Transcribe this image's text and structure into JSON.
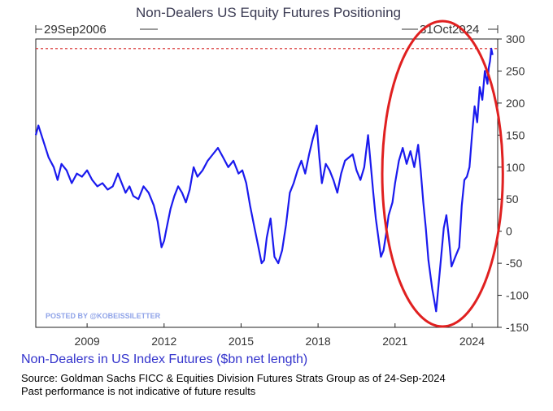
{
  "chart_data": {
    "type": "line",
    "title": "Non-Dealers US Equity Futures Positioning",
    "start_label": "29Sep2006",
    "end_label": "31Oct2024",
    "xlim": [
      2007.0,
      2025.0
    ],
    "ylim": [
      -150,
      300
    ],
    "x_ticks": [
      2009,
      2012,
      2015,
      2018,
      2021,
      2024
    ],
    "y_ticks": [
      -150,
      -100,
      -50,
      0,
      50,
      100,
      150,
      200,
      250,
      300
    ],
    "reference_line": {
      "value": 285,
      "style": "dashed",
      "color": "#d62020"
    },
    "highlight": {
      "shape": "ellipse",
      "color": "#e02020",
      "x_range": [
        2020.5,
        2025.2
      ]
    },
    "series": [
      {
        "color": "#1a1aee",
        "x": [
          2007.0,
          2007.1,
          2007.3,
          2007.5,
          2007.7,
          2007.85,
          2008.0,
          2008.2,
          2008.4,
          2008.6,
          2008.8,
          2009.0,
          2009.2,
          2009.4,
          2009.6,
          2009.8,
          2010.0,
          2010.2,
          2010.35,
          2010.5,
          2010.65,
          2010.8,
          2011.0,
          2011.2,
          2011.4,
          2011.6,
          2011.75,
          2011.9,
          2012.0,
          2012.1,
          2012.25,
          2012.4,
          2012.55,
          2012.7,
          2012.85,
          2013.0,
          2013.15,
          2013.3,
          2013.5,
          2013.7,
          2013.9,
          2014.1,
          2014.3,
          2014.5,
          2014.7,
          2014.9,
          2015.05,
          2015.2,
          2015.35,
          2015.5,
          2015.65,
          2015.8,
          2015.9,
          2016.0,
          2016.15,
          2016.3,
          2016.45,
          2016.6,
          2016.75,
          2016.9,
          2017.05,
          2017.2,
          2017.35,
          2017.5,
          2017.65,
          2017.8,
          2017.95,
          2018.05,
          2018.15,
          2018.3,
          2018.45,
          2018.6,
          2018.75,
          2018.9,
          2019.05,
          2019.2,
          2019.35,
          2019.5,
          2019.65,
          2019.8,
          2019.95,
          2020.05,
          2020.15,
          2020.25,
          2020.35,
          2020.45,
          2020.55,
          2020.65,
          2020.75,
          2020.9,
          2021.0,
          2021.15,
          2021.3,
          2021.45,
          2021.6,
          2021.75,
          2021.9,
          2022.0,
          2022.1,
          2022.2,
          2022.3,
          2022.45,
          2022.6,
          2022.75,
          2022.9,
          2023.0,
          2023.1,
          2023.2,
          2023.35,
          2023.5,
          2023.6,
          2023.7,
          2023.8,
          2023.9,
          2024.0,
          2024.1,
          2024.2,
          2024.3,
          2024.4,
          2024.5,
          2024.6,
          2024.65,
          2024.7,
          2024.75,
          2024.8
        ],
        "values": [
          150,
          165,
          140,
          115,
          100,
          80,
          105,
          95,
          75,
          90,
          85,
          95,
          80,
          70,
          75,
          65,
          70,
          90,
          75,
          60,
          70,
          55,
          50,
          70,
          60,
          40,
          15,
          -25,
          -15,
          5,
          35,
          55,
          70,
          60,
          45,
          65,
          100,
          85,
          95,
          110,
          120,
          130,
          115,
          100,
          110,
          90,
          95,
          75,
          40,
          10,
          -20,
          -50,
          -45,
          -10,
          20,
          -40,
          -50,
          -30,
          10,
          60,
          75,
          95,
          110,
          90,
          120,
          145,
          165,
          115,
          75,
          105,
          95,
          80,
          60,
          90,
          110,
          115,
          120,
          95,
          80,
          100,
          150,
          105,
          60,
          20,
          -10,
          -40,
          -30,
          -5,
          25,
          45,
          75,
          110,
          130,
          105,
          125,
          100,
          135,
          95,
          45,
          5,
          -45,
          -90,
          -125,
          -60,
          5,
          25,
          -10,
          -55,
          -40,
          -25,
          40,
          80,
          85,
          100,
          150,
          195,
          170,
          225,
          205,
          250,
          230,
          255,
          265,
          285,
          275
        ]
      }
    ]
  },
  "series_label": "Non-Dealers in US Index Futures ($bn net length)",
  "source_note": "Source: Goldman Sachs FICC & Equities Division Futures Strats Group as of 24-Sep-2024",
  "performance_note": "Past performance is not indicative of future results",
  "watermark": "POSTED BY @KOBEISSILETTER"
}
